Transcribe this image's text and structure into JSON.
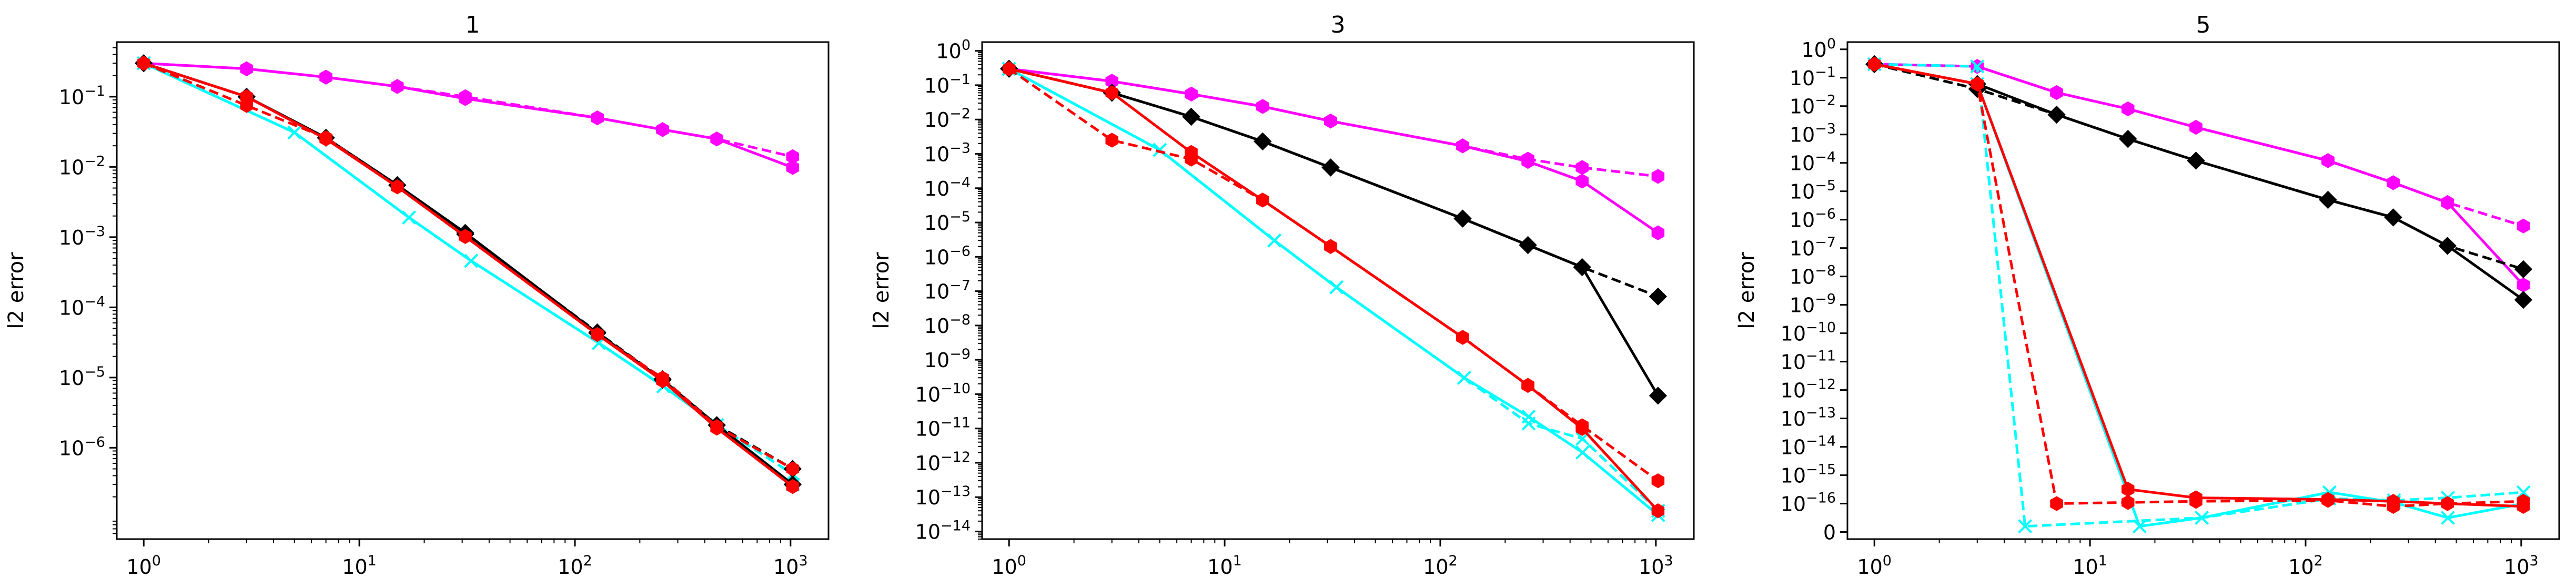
{
  "figure": {
    "background": "#ffffff"
  },
  "chart_data": [
    {
      "type": "line",
      "title": "1",
      "xlabel": "",
      "ylabel": "l2 error",
      "xscale": "log",
      "yscale": "log",
      "xlim": [
        0.75,
        1500
      ],
      "ylim": [
        5e-08,
        0.6
      ],
      "xticks": [
        1,
        10,
        100,
        1000
      ],
      "xtick_labels": [
        [
          "10",
          "0"
        ],
        [
          "10",
          "1"
        ],
        [
          "10",
          "2"
        ],
        [
          "10",
          "3"
        ]
      ],
      "yticks": [
        1e-06,
        1e-05,
        0.0001,
        0.001,
        0.01,
        0.1
      ],
      "ytick_labels": [
        [
          "10",
          "−6"
        ],
        [
          "10",
          "−5"
        ],
        [
          "10",
          "−4"
        ],
        [
          "10",
          "−3"
        ],
        [
          "10",
          "−2"
        ],
        [
          "10",
          "−1"
        ]
      ],
      "grid": false,
      "series": [
        {
          "color": "#ff00ff",
          "dash": true,
          "marker": "hexagon",
          "x": [
            1,
            3,
            7,
            15,
            31,
            127,
            255,
            455,
            1023
          ],
          "y": [
            0.3,
            0.25,
            0.19,
            0.14,
            0.1,
            0.05,
            0.034,
            0.025,
            0.014
          ]
        },
        {
          "color": "#ff00ff",
          "dash": false,
          "marker": "hexagon",
          "x": [
            1,
            3,
            7,
            15,
            31,
            127,
            255,
            455,
            1023
          ],
          "y": [
            0.3,
            0.25,
            0.19,
            0.14,
            0.094,
            0.05,
            0.034,
            0.025,
            0.0098
          ]
        },
        {
          "color": "#00ffff",
          "dash": true,
          "marker": "x",
          "x": [
            1,
            5,
            17,
            33,
            129,
            257,
            457,
            1025
          ],
          "y": [
            0.3,
            0.031,
            0.0019,
            0.00046,
            3.1e-05,
            7.5e-06,
            2.1e-06,
            4.2e-07
          ]
        },
        {
          "color": "#00ffff",
          "dash": false,
          "marker": "x",
          "x": [
            1,
            5,
            17,
            33,
            129,
            257,
            457,
            1025
          ],
          "y": [
            0.3,
            0.031,
            0.0019,
            0.00046,
            3.1e-05,
            7.5e-06,
            2.1e-06,
            3e-07
          ]
        },
        {
          "color": "#000000",
          "dash": true,
          "marker": "diamond",
          "x": [
            1,
            3,
            7,
            15,
            31,
            127,
            255,
            455,
            1023
          ],
          "y": [
            0.3,
            0.1,
            0.026,
            0.0055,
            0.0011,
            4.4e-05,
            9.5e-06,
            2.1e-06,
            5e-07
          ]
        },
        {
          "color": "#000000",
          "dash": false,
          "marker": "diamond",
          "x": [
            1,
            3,
            7,
            15,
            31,
            127,
            255,
            455,
            1023
          ],
          "y": [
            0.3,
            0.1,
            0.026,
            0.0055,
            0.00115,
            4.3e-05,
            9.3e-06,
            2.1e-06,
            3e-07
          ]
        },
        {
          "color": "#ff0000",
          "dash": true,
          "marker": "hexagon",
          "x": [
            1,
            3,
            7,
            15,
            31,
            127,
            255,
            455,
            1023
          ],
          "y": [
            0.3,
            0.075,
            0.026,
            0.0052,
            0.00102,
            4.1e-05,
            9.8e-06,
            2e-06,
            5e-07
          ]
        },
        {
          "color": "#ff0000",
          "dash": false,
          "marker": "hexagon",
          "x": [
            1,
            3,
            7,
            15,
            31,
            127,
            255,
            455,
            1023
          ],
          "y": [
            0.3,
            0.1,
            0.025,
            0.0052,
            0.00102,
            4.1e-05,
            9e-06,
            1.9e-06,
            2.8e-07
          ]
        }
      ]
    },
    {
      "type": "line",
      "title": "3",
      "xlabel": "",
      "ylabel": "l2 error",
      "xscale": "log",
      "yscale": "log",
      "xlim": [
        0.75,
        1500
      ],
      "ylim": [
        6e-15,
        1.8
      ],
      "xticks": [
        1,
        10,
        100,
        1000
      ],
      "xtick_labels": [
        [
          "10",
          "0"
        ],
        [
          "10",
          "1"
        ],
        [
          "10",
          "2"
        ],
        [
          "10",
          "3"
        ]
      ],
      "yticks": [
        1e-14,
        1e-13,
        1e-12,
        1e-11,
        1e-10,
        1e-09,
        1e-08,
        1e-07,
        1e-06,
        1e-05,
        0.0001,
        0.001,
        0.01,
        0.1,
        1
      ],
      "ytick_labels": [
        [
          "10",
          "−14"
        ],
        [
          "10",
          "−13"
        ],
        [
          "10",
          "−12"
        ],
        [
          "10",
          "−11"
        ],
        [
          "10",
          "−10"
        ],
        [
          "10",
          "−9"
        ],
        [
          "10",
          "−8"
        ],
        [
          "10",
          "−7"
        ],
        [
          "10",
          "−6"
        ],
        [
          "10",
          "−5"
        ],
        [
          "10",
          "−4"
        ],
        [
          "10",
          "−3"
        ],
        [
          "10",
          "−2"
        ],
        [
          "10",
          "−1"
        ],
        [
          "10",
          "0"
        ]
      ],
      "grid": false,
      "series": [
        {
          "color": "#ff00ff",
          "dash": true,
          "marker": "hexagon",
          "x": [
            1,
            3,
            7,
            15,
            31,
            127,
            255,
            455,
            1023
          ],
          "y": [
            0.3,
            0.13,
            0.055,
            0.024,
            0.009,
            0.0017,
            0.0007,
            0.0004,
            0.00022
          ]
        },
        {
          "color": "#ff00ff",
          "dash": false,
          "marker": "hexagon",
          "x": [
            1,
            3,
            7,
            15,
            31,
            127,
            255,
            455,
            1023
          ],
          "y": [
            0.3,
            0.13,
            0.055,
            0.024,
            0.009,
            0.0017,
            0.0006,
            0.00016,
            5e-06
          ]
        },
        {
          "color": "#00ffff",
          "dash": true,
          "marker": "x",
          "x": [
            1,
            5,
            17,
            33,
            129,
            257,
            457,
            1025
          ],
          "y": [
            0.3,
            0.0013,
            3e-06,
            1.3e-07,
            3e-10,
            1.4e-11,
            5e-12,
            4e-14
          ]
        },
        {
          "color": "#00ffff",
          "dash": false,
          "marker": "x",
          "x": [
            1,
            5,
            17,
            33,
            129,
            257,
            457,
            1025
          ],
          "y": [
            0.3,
            0.0013,
            3e-06,
            1.3e-07,
            3e-10,
            2.2e-11,
            2e-12,
            3e-14
          ]
        },
        {
          "color": "#000000",
          "dash": true,
          "marker": "diamond",
          "x": [
            1,
            3,
            7,
            15,
            31,
            127,
            255,
            455,
            1023
          ],
          "y": [
            0.3,
            0.06,
            0.012,
            0.0023,
            0.0004,
            1.3e-05,
            2.2e-06,
            5e-07,
            7e-08
          ]
        },
        {
          "color": "#000000",
          "dash": false,
          "marker": "diamond",
          "x": [
            1,
            3,
            7,
            15,
            31,
            127,
            255,
            455,
            1023
          ],
          "y": [
            0.3,
            0.06,
            0.012,
            0.0023,
            0.0004,
            1.3e-05,
            2.2e-06,
            5e-07,
            9e-11
          ]
        },
        {
          "color": "#ff0000",
          "dash": true,
          "marker": "hexagon",
          "x": [
            1,
            3,
            7,
            15,
            31,
            127,
            255,
            455,
            1023
          ],
          "y": [
            0.3,
            0.0025,
            0.0007,
            4.5e-05,
            2e-06,
            4.5e-09,
            1.8e-10,
            1.2e-11,
            3e-13
          ]
        },
        {
          "color": "#ff0000",
          "dash": false,
          "marker": "hexagon",
          "x": [
            1,
            3,
            7,
            15,
            31,
            127,
            255,
            455,
            1023
          ],
          "y": [
            0.3,
            0.06,
            0.0011,
            4.5e-05,
            2e-06,
            4.5e-09,
            1.8e-10,
            1e-11,
            4e-14
          ]
        }
      ]
    },
    {
      "type": "line",
      "title": "5",
      "xlabel": "",
      "ylabel": "l2 error",
      "xscale": "log",
      "yscale": "symlog",
      "linthresh": 1e-16,
      "xlim": [
        0.75,
        1500
      ],
      "ylim": [
        -2.5e-17,
        1.8
      ],
      "xticks": [
        1,
        10,
        100,
        1000
      ],
      "xtick_labels": [
        [
          "10",
          "0"
        ],
        [
          "10",
          "1"
        ],
        [
          "10",
          "2"
        ],
        [
          "10",
          "3"
        ]
      ],
      "yticks": [
        0,
        1e-16,
        1e-15,
        1e-14,
        1e-13,
        1e-12,
        1e-11,
        1e-10,
        1e-09,
        1e-08,
        1e-07,
        1e-06,
        1e-05,
        0.0001,
        0.001,
        0.01,
        0.1,
        1
      ],
      "ytick_labels": [
        [
          "0",
          ""
        ],
        [
          "10",
          "−16"
        ],
        [
          "10",
          "−15"
        ],
        [
          "10",
          "−14"
        ],
        [
          "10",
          "−13"
        ],
        [
          "10",
          "−12"
        ],
        [
          "10",
          "−11"
        ],
        [
          "10",
          "−10"
        ],
        [
          "10",
          "−9"
        ],
        [
          "10",
          "−8"
        ],
        [
          "10",
          "−7"
        ],
        [
          "10",
          "−6"
        ],
        [
          "10",
          "−5"
        ],
        [
          "10",
          "−4"
        ],
        [
          "10",
          "−3"
        ],
        [
          "10",
          "−2"
        ],
        [
          "10",
          "−1"
        ],
        [
          "10",
          "0"
        ]
      ],
      "grid": false,
      "series": [
        {
          "color": "#ff00ff",
          "dash": true,
          "marker": "hexagon",
          "x": [
            1,
            3,
            7,
            15,
            31,
            127,
            255,
            455,
            1023
          ],
          "y": [
            0.3,
            0.25,
            0.03,
            0.008,
            0.0018,
            0.00012,
            2e-05,
            4e-06,
            6e-07
          ]
        },
        {
          "color": "#ff00ff",
          "dash": false,
          "marker": "hexagon",
          "x": [
            1,
            3,
            7,
            15,
            31,
            127,
            255,
            455,
            1023
          ],
          "y": [
            0.3,
            0.25,
            0.03,
            0.008,
            0.0018,
            0.00012,
            2e-05,
            4e-06,
            5e-09
          ]
        },
        {
          "color": "#00ffff",
          "dash": true,
          "marker": "x",
          "x": [
            1,
            3,
            5,
            33,
            129,
            257,
            457,
            1025
          ],
          "y": [
            0.3,
            0.25,
            2e-17,
            5e-17,
            1.5e-16,
            1.3e-16,
            1.6e-16,
            2.5e-16
          ]
        },
        {
          "color": "#00ffff",
          "dash": false,
          "marker": "x",
          "x": [
            1,
            3,
            17,
            33,
            129,
            257,
            457,
            1025
          ],
          "y": [
            0.3,
            0.06,
            2e-17,
            5e-17,
            2.5e-16,
            1.1e-16,
            5e-17,
            1e-16
          ]
        },
        {
          "color": "#000000",
          "dash": true,
          "marker": "diamond",
          "x": [
            1,
            3,
            7,
            15,
            31,
            127,
            255,
            455,
            1023
          ],
          "y": [
            0.3,
            0.04,
            0.005,
            0.0007,
            0.00012,
            5e-06,
            1.2e-06,
            1.2e-07,
            1.8e-08
          ]
        },
        {
          "color": "#000000",
          "dash": false,
          "marker": "diamond",
          "x": [
            1,
            3,
            7,
            15,
            31,
            127,
            255,
            455,
            1023
          ],
          "y": [
            0.3,
            0.06,
            0.005,
            0.0007,
            0.00012,
            5e-06,
            1.2e-06,
            1.2e-07,
            1.5e-09
          ]
        },
        {
          "color": "#ff0000",
          "dash": true,
          "marker": "hexagon",
          "x": [
            1,
            3,
            7,
            15,
            31,
            127,
            255,
            455,
            1023
          ],
          "y": [
            0.3,
            0.06,
            1e-16,
            1.1e-16,
            1.2e-16,
            1.3e-16,
            9e-17,
            1e-16,
            1.2e-16
          ]
        },
        {
          "color": "#ff0000",
          "dash": false,
          "marker": "hexagon",
          "x": [
            1,
            3,
            15,
            31,
            127,
            255,
            455,
            1023
          ],
          "y": [
            0.3,
            0.06,
            3.2e-16,
            1.6e-16,
            1.4e-16,
            1.2e-16,
            1e-16,
            9e-17
          ]
        }
      ]
    }
  ]
}
